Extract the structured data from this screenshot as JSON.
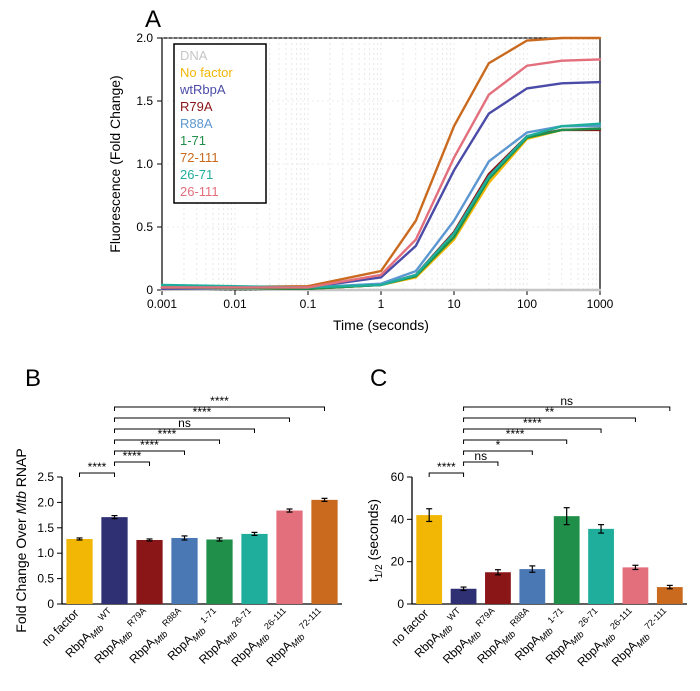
{
  "panelA": {
    "label": "A",
    "type": "line",
    "title": "",
    "xlabel": "Time (seconds)",
    "ylabel": "Fluorescence (Fold Change)",
    "xscale": "log",
    "xlim": [
      0.001,
      1000
    ],
    "xticks": [
      0.001,
      0.01,
      0.1,
      1,
      10,
      100,
      1000
    ],
    "xtick_labels": [
      "0.001",
      "0.01",
      "0.1",
      "1",
      "10",
      "100",
      "1000"
    ],
    "ylim": [
      0,
      2.0
    ],
    "yticks": [
      0,
      0.5,
      1.0,
      1.5,
      2.0
    ],
    "ytick_labels": [
      "0",
      "0.5",
      "1.0",
      "1.5",
      "2.0"
    ],
    "background_color": "#ffffff",
    "grid_color": "#d9d9d9",
    "series": [
      {
        "name": "DNA",
        "color": "#c6c6c6",
        "curve": [
          [
            0.001,
            0.0
          ],
          [
            0.01,
            0.01
          ],
          [
            0.1,
            0.0
          ],
          [
            1,
            0.0
          ],
          [
            10,
            0.0
          ],
          [
            100,
            0.0
          ],
          [
            1000,
            0.0
          ]
        ]
      },
      {
        "name": "No factor",
        "color": "#f2b705",
        "curve": [
          [
            0.001,
            0.02
          ],
          [
            0.1,
            0.01
          ],
          [
            1,
            0.04
          ],
          [
            3,
            0.1
          ],
          [
            10,
            0.4
          ],
          [
            30,
            0.85
          ],
          [
            100,
            1.2
          ],
          [
            300,
            1.27
          ],
          [
            1000,
            1.28
          ]
        ]
      },
      {
        "name": "wtRbpA",
        "color": "#4b4ba8",
        "curve": [
          [
            0.001,
            0.01
          ],
          [
            0.1,
            0.02
          ],
          [
            1,
            0.1
          ],
          [
            3,
            0.35
          ],
          [
            10,
            0.95
          ],
          [
            30,
            1.4
          ],
          [
            100,
            1.6
          ],
          [
            300,
            1.64
          ],
          [
            1000,
            1.65
          ]
        ]
      },
      {
        "name": "R79A",
        "color": "#8a1618",
        "curve": [
          [
            0.001,
            0.02
          ],
          [
            0.1,
            0.01
          ],
          [
            1,
            0.04
          ],
          [
            3,
            0.12
          ],
          [
            10,
            0.46
          ],
          [
            30,
            0.92
          ],
          [
            100,
            1.22
          ],
          [
            300,
            1.27
          ],
          [
            1000,
            1.27
          ]
        ]
      },
      {
        "name": "R88A",
        "color": "#5c97d1",
        "curve": [
          [
            0.001,
            0.02
          ],
          [
            0.1,
            0.02
          ],
          [
            1,
            0.05
          ],
          [
            3,
            0.15
          ],
          [
            10,
            0.55
          ],
          [
            30,
            1.02
          ],
          [
            100,
            1.25
          ],
          [
            300,
            1.3
          ],
          [
            1000,
            1.3
          ]
        ]
      },
      {
        "name": "1-71",
        "color": "#1f8f49",
        "curve": [
          [
            0.001,
            0.02
          ],
          [
            0.1,
            0.01
          ],
          [
            1,
            0.04
          ],
          [
            3,
            0.11
          ],
          [
            10,
            0.42
          ],
          [
            30,
            0.88
          ],
          [
            100,
            1.21
          ],
          [
            300,
            1.27
          ],
          [
            1000,
            1.28
          ]
        ]
      },
      {
        "name": "72-111",
        "color": "#c96a1f",
        "curve": [
          [
            0.001,
            0.02
          ],
          [
            0.1,
            0.03
          ],
          [
            1,
            0.15
          ],
          [
            3,
            0.55
          ],
          [
            10,
            1.3
          ],
          [
            30,
            1.8
          ],
          [
            100,
            1.98
          ],
          [
            300,
            2.0
          ],
          [
            1000,
            2.0
          ]
        ]
      },
      {
        "name": "26-71",
        "color": "#1fae9c",
        "curve": [
          [
            0.001,
            0.04
          ],
          [
            0.1,
            0.02
          ],
          [
            1,
            0.04
          ],
          [
            3,
            0.12
          ],
          [
            10,
            0.45
          ],
          [
            30,
            0.9
          ],
          [
            100,
            1.22
          ],
          [
            300,
            1.3
          ],
          [
            1000,
            1.32
          ]
        ]
      },
      {
        "name": "26-111",
        "color": "#e36f7d",
        "curve": [
          [
            0.001,
            0.02
          ],
          [
            0.1,
            0.02
          ],
          [
            1,
            0.12
          ],
          [
            3,
            0.4
          ],
          [
            10,
            1.05
          ],
          [
            30,
            1.55
          ],
          [
            100,
            1.78
          ],
          [
            300,
            1.82
          ],
          [
            1000,
            1.83
          ]
        ]
      }
    ]
  },
  "categories": [
    "no factor",
    "RbpA_WT",
    "RbpA_R79A",
    "RbpA_R88A",
    "RbpA_1-71",
    "RbpA_26-71",
    "RbpA_26-111",
    "RbpA_72-111"
  ],
  "category_prefix": "RbpA",
  "category_subscript": "Mtb",
  "bar_colors": [
    "#f2b705",
    "#2f2f73",
    "#8a1618",
    "#4a78b5",
    "#1f8f49",
    "#1fae9c",
    "#e36f7d",
    "#c96a1f"
  ],
  "panelB": {
    "label": "B",
    "type": "bar",
    "ylabel": "Fold Change Over Mtb RNAP",
    "ylabel_plain_before": "Fold Change Over ",
    "ylabel_italic": "Mtb",
    "ylabel_plain_after": " RNAP",
    "ylim": [
      0,
      2.5
    ],
    "yticks": [
      0,
      0.5,
      1.0,
      1.5,
      2.0,
      2.5
    ],
    "ytick_labels": [
      "0",
      "0.5",
      "1.0",
      "1.5",
      "2.0",
      "2.5"
    ],
    "values": [
      1.28,
      1.71,
      1.26,
      1.3,
      1.27,
      1.38,
      1.84,
      2.05
    ],
    "errors": [
      0.02,
      0.03,
      0.02,
      0.04,
      0.03,
      0.03,
      0.03,
      0.03
    ],
    "significance": [
      {
        "from": 0,
        "to": 1,
        "label": "****",
        "level": 1
      },
      {
        "from": 1,
        "to": 2,
        "label": "****",
        "level": 2
      },
      {
        "from": 1,
        "to": 3,
        "label": "****",
        "level": 3
      },
      {
        "from": 1,
        "to": 4,
        "label": "****",
        "level": 4
      },
      {
        "from": 1,
        "to": 5,
        "label": "ns",
        "level": 5
      },
      {
        "from": 1,
        "to": 6,
        "label": "****",
        "level": 6
      },
      {
        "from": 1,
        "to": 7,
        "label": "****",
        "level": 7
      }
    ]
  },
  "panelC": {
    "label": "C",
    "type": "bar",
    "ylabel": "t1/2 (seconds)",
    "ylabel_plain_before": "t",
    "ylabel_sub": "1/2",
    "ylabel_plain_after": " (seconds)",
    "ylim": [
      0,
      60
    ],
    "yticks": [
      0,
      20,
      40,
      60
    ],
    "ytick_labels": [
      "0",
      "20",
      "40",
      "60"
    ],
    "values": [
      42,
      7.2,
      15,
      16.5,
      41.5,
      35.5,
      17.3,
      8
    ],
    "errors": [
      3,
      0.8,
      1.2,
      1.5,
      4,
      2,
      1,
      0.8
    ],
    "significance": [
      {
        "from": 0,
        "to": 1,
        "label": "****",
        "level": 1
      },
      {
        "from": 1,
        "to": 2,
        "label": "ns",
        "level": 2
      },
      {
        "from": 1,
        "to": 3,
        "label": "*",
        "level": 3
      },
      {
        "from": 1,
        "to": 4,
        "label": "****",
        "level": 4
      },
      {
        "from": 1,
        "to": 5,
        "label": "****",
        "level": 5
      },
      {
        "from": 1,
        "to": 6,
        "label": "**",
        "level": 6
      },
      {
        "from": 1,
        "to": 7,
        "label": "ns",
        "level": 7
      }
    ]
  },
  "style": {
    "panel_label_fontsize": 24,
    "axis_label_fontsize": 14,
    "tick_fontsize": 12,
    "legend_fontsize": 13,
    "error_cap_width": 4,
    "sig_line_color": "#000000",
    "bar_width_ratio": 0.75
  }
}
